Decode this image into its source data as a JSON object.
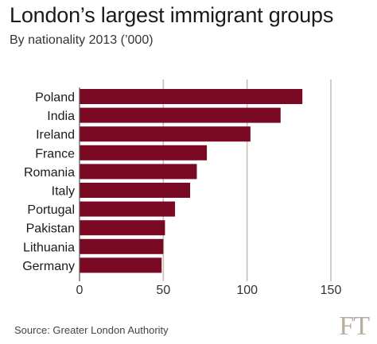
{
  "chart_data": {
    "type": "bar",
    "orientation": "horizontal",
    "title": "London’s largest immigrant groups",
    "subtitle": "By nationality 2013 (’000)",
    "categories": [
      "Poland",
      "India",
      "Ireland",
      "France",
      "Romania",
      "Italy",
      "Portugal",
      "Pakistan",
      "Lithuania",
      "Germany"
    ],
    "values": [
      133,
      120,
      102,
      76,
      70,
      66,
      57,
      51,
      50,
      49
    ],
    "xlim": [
      0,
      150
    ],
    "xticks": [
      "0",
      "50",
      "100",
      "150"
    ],
    "grid": "vertical",
    "bar_color": "#7a0a24",
    "grid_color": "#c8bfb2",
    "source": "Source: Greater London Authority"
  },
  "logo": "FT"
}
